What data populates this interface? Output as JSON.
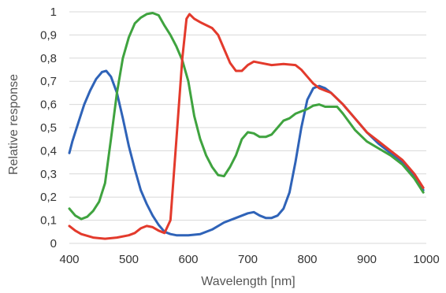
{
  "chart_data": {
    "type": "line",
    "xlabel": "Wavelength [nm]",
    "ylabel": "Relative response",
    "xlim": [
      400,
      1000
    ],
    "ylim": [
      0,
      1
    ],
    "x_ticks": [
      "400",
      "500",
      "600",
      "700",
      "800",
      "900",
      "1000"
    ],
    "y_ticks": [
      "0",
      "0,1",
      "0,2",
      "0,3",
      "0,4",
      "0,5",
      "0,6",
      "0,7",
      "0,8",
      "0,9",
      "1"
    ],
    "grid": "horizontal",
    "series": [
      {
        "color": "#2f63b8",
        "points": [
          [
            400,
            0.39
          ],
          [
            405,
            0.44
          ],
          [
            415,
            0.52
          ],
          [
            425,
            0.6
          ],
          [
            435,
            0.66
          ],
          [
            445,
            0.71
          ],
          [
            455,
            0.74
          ],
          [
            462,
            0.745
          ],
          [
            470,
            0.72
          ],
          [
            480,
            0.65
          ],
          [
            490,
            0.54
          ],
          [
            500,
            0.42
          ],
          [
            510,
            0.32
          ],
          [
            520,
            0.23
          ],
          [
            530,
            0.17
          ],
          [
            540,
            0.12
          ],
          [
            550,
            0.08
          ],
          [
            560,
            0.05
          ],
          [
            570,
            0.04
          ],
          [
            580,
            0.035
          ],
          [
            600,
            0.035
          ],
          [
            620,
            0.04
          ],
          [
            640,
            0.06
          ],
          [
            660,
            0.09
          ],
          [
            680,
            0.11
          ],
          [
            700,
            0.13
          ],
          [
            710,
            0.135
          ],
          [
            720,
            0.12
          ],
          [
            730,
            0.11
          ],
          [
            740,
            0.11
          ],
          [
            750,
            0.12
          ],
          [
            760,
            0.15
          ],
          [
            770,
            0.22
          ],
          [
            780,
            0.35
          ],
          [
            790,
            0.5
          ],
          [
            800,
            0.62
          ],
          [
            810,
            0.67
          ],
          [
            820,
            0.68
          ],
          [
            830,
            0.67
          ],
          [
            840,
            0.65
          ],
          [
            860,
            0.6
          ],
          [
            880,
            0.54
          ],
          [
            900,
            0.48
          ],
          [
            920,
            0.43
          ],
          [
            940,
            0.39
          ],
          [
            960,
            0.35
          ],
          [
            980,
            0.29
          ],
          [
            995,
            0.23
          ]
        ]
      },
      {
        "color": "#3fa33f",
        "points": [
          [
            400,
            0.15
          ],
          [
            410,
            0.12
          ],
          [
            420,
            0.105
          ],
          [
            430,
            0.115
          ],
          [
            440,
            0.14
          ],
          [
            450,
            0.18
          ],
          [
            460,
            0.26
          ],
          [
            470,
            0.45
          ],
          [
            480,
            0.65
          ],
          [
            490,
            0.8
          ],
          [
            500,
            0.89
          ],
          [
            510,
            0.95
          ],
          [
            520,
            0.975
          ],
          [
            530,
            0.99
          ],
          [
            540,
            0.995
          ],
          [
            550,
            0.985
          ],
          [
            560,
            0.94
          ],
          [
            570,
            0.9
          ],
          [
            580,
            0.85
          ],
          [
            590,
            0.79
          ],
          [
            600,
            0.7
          ],
          [
            610,
            0.55
          ],
          [
            620,
            0.45
          ],
          [
            630,
            0.38
          ],
          [
            640,
            0.33
          ],
          [
            650,
            0.295
          ],
          [
            660,
            0.29
          ],
          [
            670,
            0.33
          ],
          [
            680,
            0.38
          ],
          [
            690,
            0.45
          ],
          [
            700,
            0.48
          ],
          [
            710,
            0.475
          ],
          [
            720,
            0.46
          ],
          [
            730,
            0.46
          ],
          [
            740,
            0.47
          ],
          [
            750,
            0.5
          ],
          [
            760,
            0.53
          ],
          [
            770,
            0.54
          ],
          [
            780,
            0.56
          ],
          [
            790,
            0.57
          ],
          [
            800,
            0.58
          ],
          [
            810,
            0.595
          ],
          [
            820,
            0.6
          ],
          [
            830,
            0.59
          ],
          [
            840,
            0.59
          ],
          [
            850,
            0.59
          ],
          [
            860,
            0.56
          ],
          [
            880,
            0.49
          ],
          [
            900,
            0.44
          ],
          [
            920,
            0.41
          ],
          [
            940,
            0.38
          ],
          [
            960,
            0.34
          ],
          [
            980,
            0.28
          ],
          [
            995,
            0.22
          ]
        ]
      },
      {
        "color": "#e33a2c",
        "points": [
          [
            400,
            0.075
          ],
          [
            410,
            0.055
          ],
          [
            420,
            0.04
          ],
          [
            440,
            0.025
          ],
          [
            460,
            0.02
          ],
          [
            480,
            0.025
          ],
          [
            500,
            0.035
          ],
          [
            510,
            0.045
          ],
          [
            520,
            0.065
          ],
          [
            530,
            0.075
          ],
          [
            540,
            0.07
          ],
          [
            550,
            0.055
          ],
          [
            560,
            0.045
          ],
          [
            570,
            0.1
          ],
          [
            580,
            0.45
          ],
          [
            590,
            0.8
          ],
          [
            597,
            0.97
          ],
          [
            602,
            0.99
          ],
          [
            610,
            0.97
          ],
          [
            620,
            0.955
          ],
          [
            640,
            0.93
          ],
          [
            650,
            0.9
          ],
          [
            660,
            0.84
          ],
          [
            670,
            0.78
          ],
          [
            680,
            0.745
          ],
          [
            690,
            0.745
          ],
          [
            700,
            0.77
          ],
          [
            710,
            0.785
          ],
          [
            720,
            0.78
          ],
          [
            740,
            0.77
          ],
          [
            760,
            0.775
          ],
          [
            780,
            0.77
          ],
          [
            790,
            0.75
          ],
          [
            800,
            0.72
          ],
          [
            810,
            0.69
          ],
          [
            820,
            0.67
          ],
          [
            830,
            0.66
          ],
          [
            840,
            0.65
          ],
          [
            860,
            0.6
          ],
          [
            880,
            0.54
          ],
          [
            900,
            0.48
          ],
          [
            920,
            0.44
          ],
          [
            940,
            0.4
          ],
          [
            960,
            0.36
          ],
          [
            980,
            0.3
          ],
          [
            995,
            0.24
          ]
        ]
      }
    ]
  }
}
